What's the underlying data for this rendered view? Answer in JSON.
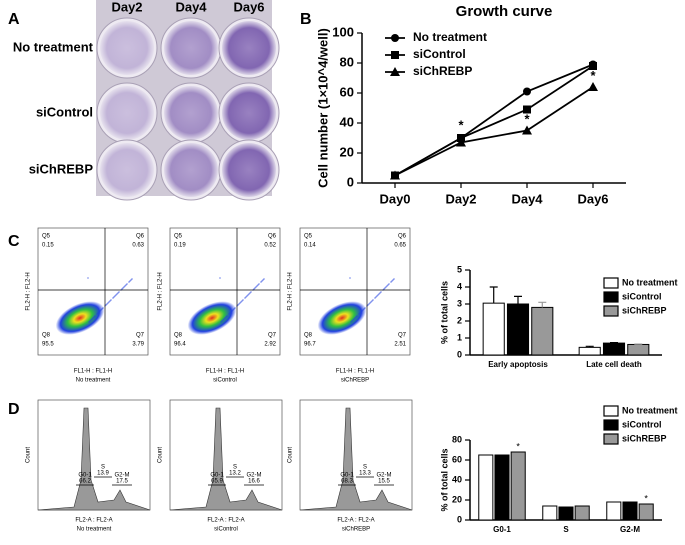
{
  "panel_labels": [
    "A",
    "B",
    "C",
    "D"
  ],
  "wells": {
    "columns": [
      "Day2",
      "Day4",
      "Day6"
    ],
    "rows": [
      "No treatment",
      "siControl",
      "siChREBP"
    ]
  },
  "flow_plots": [
    {
      "quadrants": [
        "Q5",
        "Q6",
        "Q8",
        "Q7"
      ],
      "values": [
        0.15,
        0.63,
        95.5,
        3.79
      ],
      "x_label": "FL1-H : FL1-H",
      "y_label": "FL2-H : FL2-H",
      "name": "No treatment"
    },
    {
      "quadrants": [
        "Q5",
        "Q6",
        "Q8",
        "Q7"
      ],
      "values": [
        0.19,
        0.52,
        96.4,
        2.92
      ],
      "x_label": "FL1-H : FL1-H",
      "y_label": "FL2-H : FL2-H",
      "name": "siControl"
    },
    {
      "quadrants": [
        "Q5",
        "Q6",
        "Q8",
        "Q7"
      ],
      "values": [
        0.14,
        0.65,
        96.7,
        2.51
      ],
      "x_label": "FL1-H : FL1-H",
      "y_label": "FL2-H : FL2-H",
      "name": "siChREBP"
    }
  ],
  "histograms": [
    {
      "gates": [
        "G0-1",
        "S",
        "G2-M"
      ],
      "values": [
        66.2,
        13.9,
        17.5
      ],
      "x_label": "FL2-A : FL2-A",
      "y_label": "Count",
      "name": "No treatment"
    },
    {
      "gates": [
        "G0-1",
        "S",
        "G2-M"
      ],
      "values": [
        65.9,
        13.2,
        16.6
      ],
      "x_label": "FL2-A : FL2-A",
      "y_label": "Count",
      "name": "siControl"
    },
    {
      "gates": [
        "G0-1",
        "S",
        "G2-M"
      ],
      "values": [
        68.3,
        13.3,
        15.5
      ],
      "x_label": "FL2-A : FL2-A",
      "y_label": "Count",
      "name": "siChREBP"
    }
  ],
  "chart_data": [
    {
      "type": "line",
      "title": "Growth curve",
      "y_label": "Cell number (1×10^4/well)",
      "categories": [
        "Day0",
        "Day2",
        "Day4",
        "Day6"
      ],
      "series": [
        {
          "name": "No treatment",
          "color": "#000000",
          "marker": "circle",
          "values": [
            5,
            30,
            61,
            79
          ]
        },
        {
          "name": "siControl",
          "color": "#000000",
          "marker": "square",
          "values": [
            5,
            30,
            49,
            78
          ]
        },
        {
          "name": "siChREBP",
          "color": "#000000",
          "marker": "triangle",
          "values": [
            5,
            27,
            35,
            64
          ]
        }
      ],
      "annotations": [
        {
          "text": "*",
          "category": "Day2"
        },
        {
          "text": "*",
          "category": "Day4"
        },
        {
          "text": "*",
          "category": "Day6"
        }
      ],
      "ylim": [
        0,
        100
      ],
      "yticks": [
        0,
        20,
        40,
        60,
        80,
        100
      ],
      "legend": "top-left"
    },
    {
      "type": "bar",
      "y_label": "% of total cells",
      "categories": [
        "Early apoptosis",
        "Late cell death"
      ],
      "series": [
        {
          "name": "No treatment",
          "color": "#ffffff",
          "values": [
            3.05,
            0.45
          ],
          "errors": [
            0.95,
            0.06
          ]
        },
        {
          "name": "siControl",
          "color": "#000000",
          "values": [
            3.0,
            0.7
          ],
          "errors": [
            0.45,
            0.03
          ]
        },
        {
          "name": "siChREBP",
          "color": "#999999",
          "values": [
            2.8,
            0.62
          ],
          "errors": [
            0.3,
            0.02
          ]
        }
      ],
      "ylim": [
        0,
        5
      ],
      "yticks": [
        0,
        1,
        2,
        3,
        4,
        5
      ],
      "legend": "top-right"
    },
    {
      "type": "bar",
      "y_label": "% of total cells",
      "categories": [
        "G0-1",
        "S",
        "G2-M"
      ],
      "series": [
        {
          "name": "No treatment",
          "color": "#ffffff",
          "values": [
            65,
            14,
            18
          ]
        },
        {
          "name": "siControl",
          "color": "#000000",
          "values": [
            65,
            13,
            18
          ]
        },
        {
          "name": "siChREBP",
          "color": "#999999",
          "values": [
            68,
            14,
            16
          ]
        }
      ],
      "annotations": [
        {
          "text": "*",
          "category": "G0-1",
          "series": "siChREBP"
        },
        {
          "text": "*",
          "category": "G2-M",
          "series": "siChREBP"
        }
      ],
      "ylim": [
        0,
        80
      ],
      "yticks": [
        0,
        20,
        40,
        60,
        80
      ],
      "legend": "top-right"
    }
  ]
}
